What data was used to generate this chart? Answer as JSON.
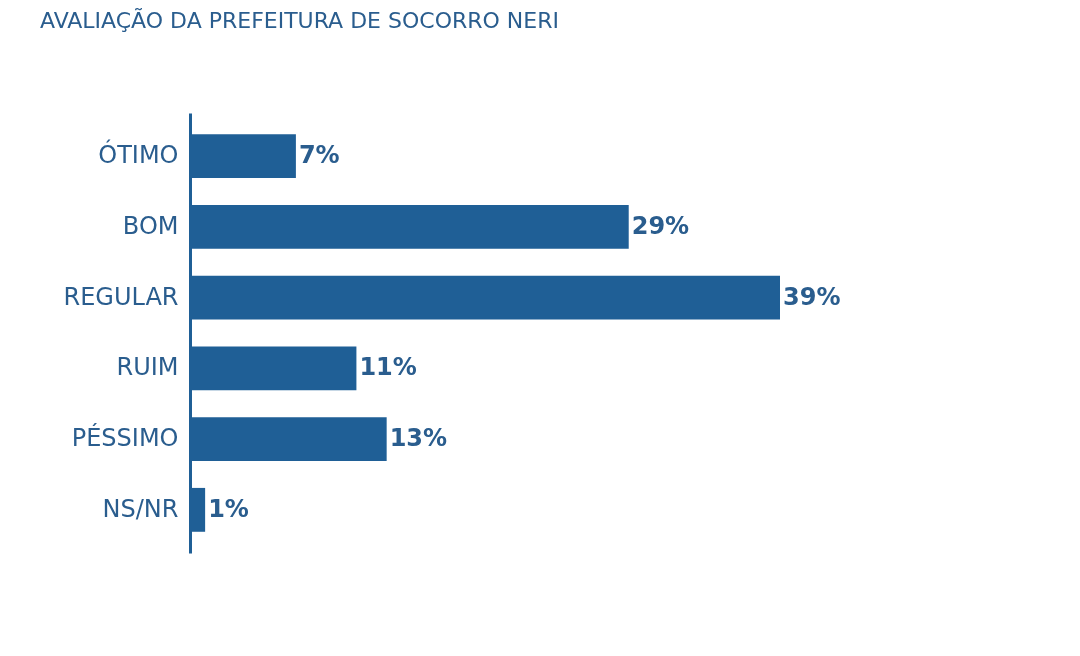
{
  "chart_data": {
    "type": "bar",
    "orientation": "horizontal",
    "title": "AVALIAÇÃO DA PREFEITURA DE SOCORRO NERI",
    "categories": [
      "ÓTIMO",
      "BOM",
      "REGULAR",
      "RUIM",
      "PÉSSIMO",
      "NS/NR"
    ],
    "values": [
      7,
      29,
      39,
      11,
      13,
      1
    ],
    "value_labels": [
      "7%",
      "29%",
      "39%",
      "11%",
      "13%",
      "1%"
    ],
    "color": "#1f5f96"
  }
}
